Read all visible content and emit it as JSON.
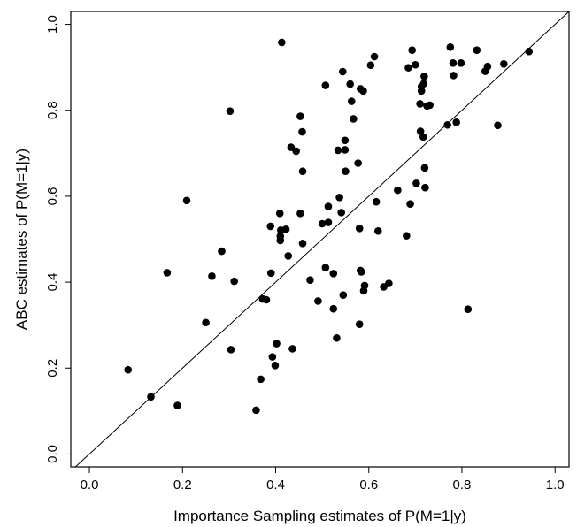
{
  "chart_data": {
    "type": "scatter",
    "title": "",
    "xlabel": "Importance Sampling estimates of P(M=1|y)",
    "ylabel": "ABC estimates of P(M=1|y)",
    "xlim": [
      -0.04,
      1.03
    ],
    "ylim": [
      -0.03,
      1.03
    ],
    "xticks": [
      0.0,
      0.2,
      0.4,
      0.6,
      0.8,
      1.0
    ],
    "yticks": [
      0.0,
      0.2,
      0.4,
      0.6,
      0.8,
      1.0
    ],
    "xtick_labels": [
      "0.0",
      "0.2",
      "0.4",
      "0.6",
      "0.8",
      "1.0"
    ],
    "ytick_labels": [
      "0.0",
      "0.2",
      "0.4",
      "0.6",
      "0.8",
      "1.0"
    ],
    "reference_line": {
      "slope": 1,
      "intercept": 0
    },
    "grid": false,
    "point_color": "#000000",
    "points": [
      [
        0.083,
        0.196
      ],
      [
        0.132,
        0.133
      ],
      [
        0.167,
        0.422
      ],
      [
        0.189,
        0.113
      ],
      [
        0.209,
        0.59
      ],
      [
        0.25,
        0.306
      ],
      [
        0.263,
        0.414
      ],
      [
        0.284,
        0.472
      ],
      [
        0.302,
        0.798
      ],
      [
        0.304,
        0.243
      ],
      [
        0.311,
        0.402
      ],
      [
        0.368,
        0.174
      ],
      [
        0.372,
        0.361
      ],
      [
        0.38,
        0.359
      ],
      [
        0.389,
        0.53
      ],
      [
        0.39,
        0.421
      ],
      [
        0.393,
        0.226
      ],
      [
        0.399,
        0.206
      ],
      [
        0.402,
        0.257
      ],
      [
        0.409,
        0.56
      ],
      [
        0.413,
        0.958
      ],
      [
        0.411,
        0.521
      ],
      [
        0.41,
        0.507
      ],
      [
        0.41,
        0.497
      ],
      [
        0.422,
        0.523
      ],
      [
        0.427,
        0.461
      ],
      [
        0.433,
        0.714
      ],
      [
        0.436,
        0.245
      ],
      [
        0.444,
        0.705
      ],
      [
        0.453,
        0.786
      ],
      [
        0.453,
        0.56
      ],
      [
        0.457,
        0.75
      ],
      [
        0.458,
        0.658
      ],
      [
        0.458,
        0.49
      ],
      [
        0.358,
        0.102
      ],
      [
        0.474,
        0.405
      ],
      [
        0.491,
        0.356
      ],
      [
        0.5,
        0.536
      ],
      [
        0.507,
        0.858
      ],
      [
        0.507,
        0.434
      ],
      [
        0.513,
        0.576
      ],
      [
        0.513,
        0.539
      ],
      [
        0.524,
        0.42
      ],
      [
        0.524,
        0.338
      ],
      [
        0.531,
        0.27
      ],
      [
        0.534,
        0.707
      ],
      [
        0.537,
        0.597
      ],
      [
        0.541,
        0.562
      ],
      [
        0.544,
        0.89
      ],
      [
        0.545,
        0.37
      ],
      [
        0.549,
        0.708
      ],
      [
        0.549,
        0.73
      ],
      [
        0.55,
        0.658
      ],
      [
        0.56,
        0.861
      ],
      [
        0.563,
        0.821
      ],
      [
        0.567,
        0.78
      ],
      [
        0.577,
        0.677
      ],
      [
        0.58,
        0.525
      ],
      [
        0.58,
        0.302
      ],
      [
        0.582,
        0.85
      ],
      [
        0.582,
        0.427
      ],
      [
        0.584,
        0.424
      ],
      [
        0.588,
        0.845
      ],
      [
        0.589,
        0.38
      ],
      [
        0.591,
        0.392
      ],
      [
        0.604,
        0.905
      ],
      [
        0.612,
        0.925
      ],
      [
        0.616,
        0.587
      ],
      [
        0.62,
        0.519
      ],
      [
        0.632,
        0.389
      ],
      [
        0.643,
        0.397
      ],
      [
        0.662,
        0.614
      ],
      [
        0.681,
        0.508
      ],
      [
        0.685,
        0.899
      ],
      [
        0.689,
        0.582
      ],
      [
        0.693,
        0.94
      ],
      [
        0.7,
        0.906
      ],
      [
        0.702,
        0.63
      ],
      [
        0.71,
        0.815
      ],
      [
        0.711,
        0.751
      ],
      [
        0.713,
        0.855
      ],
      [
        0.713,
        0.845
      ],
      [
        0.718,
        0.862
      ],
      [
        0.717,
        0.738
      ],
      [
        0.719,
        0.879
      ],
      [
        0.72,
        0.666
      ],
      [
        0.721,
        0.62
      ],
      [
        0.725,
        0.81
      ],
      [
        0.731,
        0.812
      ],
      [
        0.769,
        0.766
      ],
      [
        0.775,
        0.947
      ],
      [
        0.781,
        0.91
      ],
      [
        0.782,
        0.881
      ],
      [
        0.788,
        0.772
      ],
      [
        0.798,
        0.91
      ],
      [
        0.813,
        0.337
      ],
      [
        0.832,
        0.94
      ],
      [
        0.85,
        0.891
      ],
      [
        0.855,
        0.902
      ],
      [
        0.877,
        0.765
      ],
      [
        0.89,
        0.908
      ],
      [
        0.944,
        0.937
      ]
    ]
  }
}
